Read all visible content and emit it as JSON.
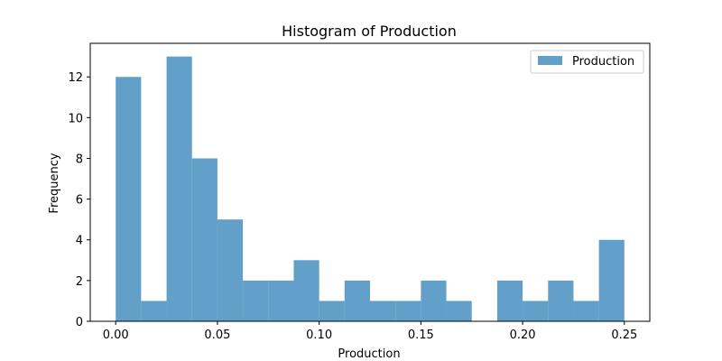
{
  "chart_data": {
    "type": "histogram",
    "title": "Histogram of Production",
    "xlabel": "Production",
    "ylabel": "Frequency",
    "xlim": [
      -0.0125,
      0.2625
    ],
    "ylim": [
      0,
      13.65
    ],
    "bar_color": "#1f77b4",
    "bar_opacity": 0.7,
    "grid": false,
    "legend": {
      "position": "top-right",
      "entries": [
        "Production"
      ]
    },
    "bin_edges": [
      0.0,
      0.0125,
      0.025,
      0.0375,
      0.05,
      0.0625,
      0.075,
      0.0875,
      0.1,
      0.1125,
      0.125,
      0.1375,
      0.15,
      0.1625,
      0.175,
      0.1875,
      0.2,
      0.2125,
      0.225,
      0.2375,
      0.25
    ],
    "series": [
      {
        "name": "Production",
        "values": [
          12,
          1,
          13,
          8,
          5,
          2,
          2,
          3,
          1,
          2,
          1,
          1,
          2,
          1,
          0,
          2,
          1,
          2,
          1,
          4
        ]
      }
    ],
    "x_ticks": [
      0.0,
      0.05,
      0.1,
      0.15,
      0.2,
      0.25
    ],
    "x_tick_labels": [
      "0.00",
      "0.05",
      "0.10",
      "0.15",
      "0.20",
      "0.25"
    ],
    "y_ticks": [
      0,
      2,
      4,
      6,
      8,
      10,
      12
    ],
    "y_tick_labels": [
      "0",
      "2",
      "4",
      "6",
      "8",
      "10",
      "12"
    ]
  }
}
